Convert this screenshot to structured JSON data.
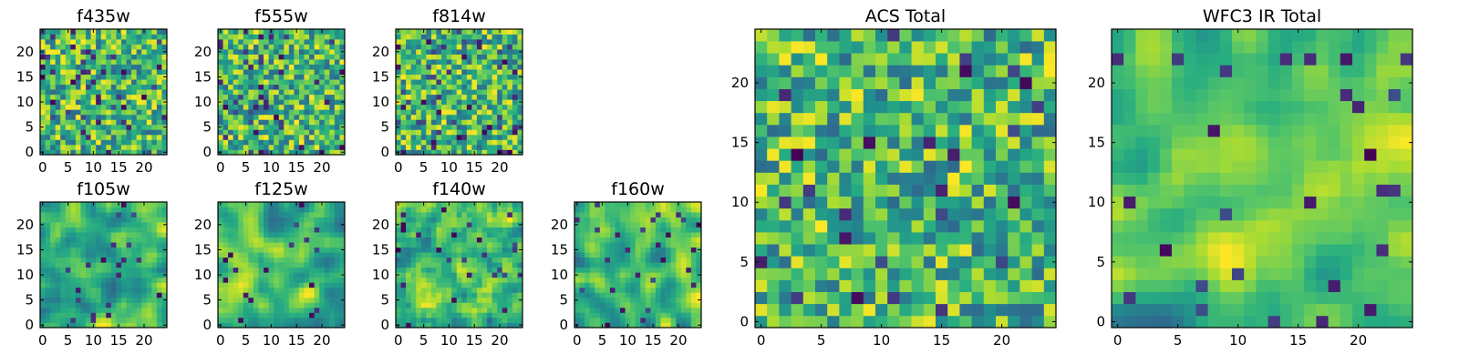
{
  "chart_data": [
    {
      "type": "heatmap",
      "title": "f435w",
      "grid": [
        25,
        25
      ],
      "xticks": [
        "0",
        "5",
        "10",
        "15",
        "20"
      ],
      "yticks": [
        "0",
        "5",
        "10",
        "15",
        "20"
      ],
      "colormap": "viridis",
      "smoothness": 1,
      "seed": 11,
      "dark_fraction": 0.07
    },
    {
      "type": "heatmap",
      "title": "f555w",
      "grid": [
        25,
        25
      ],
      "xticks": [
        "0",
        "5",
        "10",
        "15",
        "20"
      ],
      "yticks": [
        "0",
        "5",
        "10",
        "15",
        "20"
      ],
      "colormap": "viridis",
      "smoothness": 1,
      "seed": 23,
      "dark_fraction": 0.06
    },
    {
      "type": "heatmap",
      "title": "f814w",
      "grid": [
        25,
        25
      ],
      "xticks": [
        "0",
        "5",
        "10",
        "15",
        "20"
      ],
      "yticks": [
        "0",
        "5",
        "10",
        "15",
        "20"
      ],
      "colormap": "viridis",
      "smoothness": 1,
      "seed": 37,
      "dark_fraction": 0.06
    },
    {
      "type": "heatmap",
      "title": "f105w",
      "grid": [
        25,
        25
      ],
      "xticks": [
        "0",
        "5",
        "10",
        "15",
        "20"
      ],
      "yticks": [
        "0",
        "5",
        "10",
        "15",
        "20"
      ],
      "colormap": "viridis",
      "smoothness": 3,
      "seed": 41,
      "dark_fraction": 0.03
    },
    {
      "type": "heatmap",
      "title": "f125w",
      "grid": [
        25,
        25
      ],
      "xticks": [
        "0",
        "5",
        "10",
        "15",
        "20"
      ],
      "yticks": [
        "0",
        "5",
        "10",
        "15",
        "20"
      ],
      "colormap": "viridis",
      "smoothness": 3,
      "seed": 53,
      "dark_fraction": 0.03
    },
    {
      "type": "heatmap",
      "title": "f140w",
      "grid": [
        25,
        25
      ],
      "xticks": [
        "0",
        "5",
        "10",
        "15",
        "20"
      ],
      "yticks": [
        "0",
        "5",
        "10",
        "15",
        "20"
      ],
      "colormap": "viridis",
      "smoothness": 2,
      "seed": 67,
      "dark_fraction": 0.04
    },
    {
      "type": "heatmap",
      "title": "f160w",
      "grid": [
        25,
        25
      ],
      "xticks": [
        "0",
        "5",
        "10",
        "15",
        "20"
      ],
      "yticks": [
        "0",
        "5",
        "10",
        "15",
        "20"
      ],
      "colormap": "viridis",
      "smoothness": 3,
      "seed": 79,
      "dark_fraction": 0.03
    },
    {
      "type": "heatmap",
      "title": "ACS Total",
      "grid": [
        25,
        25
      ],
      "xticks": [
        "0",
        "5",
        "10",
        "15",
        "20"
      ],
      "yticks": [
        "0",
        "5",
        "10",
        "15",
        "20"
      ],
      "colormap": "viridis",
      "smoothness": 1,
      "seed": 83,
      "dark_fraction": 0.05
    },
    {
      "type": "heatmap",
      "title": "WFC3 IR Total",
      "grid": [
        25,
        25
      ],
      "xticks": [
        "0",
        "5",
        "10",
        "15",
        "20"
      ],
      "yticks": [
        "0",
        "5",
        "10",
        "15",
        "20"
      ],
      "colormap": "viridis",
      "smoothness": 3,
      "seed": 97,
      "dark_fraction": 0.03
    }
  ]
}
